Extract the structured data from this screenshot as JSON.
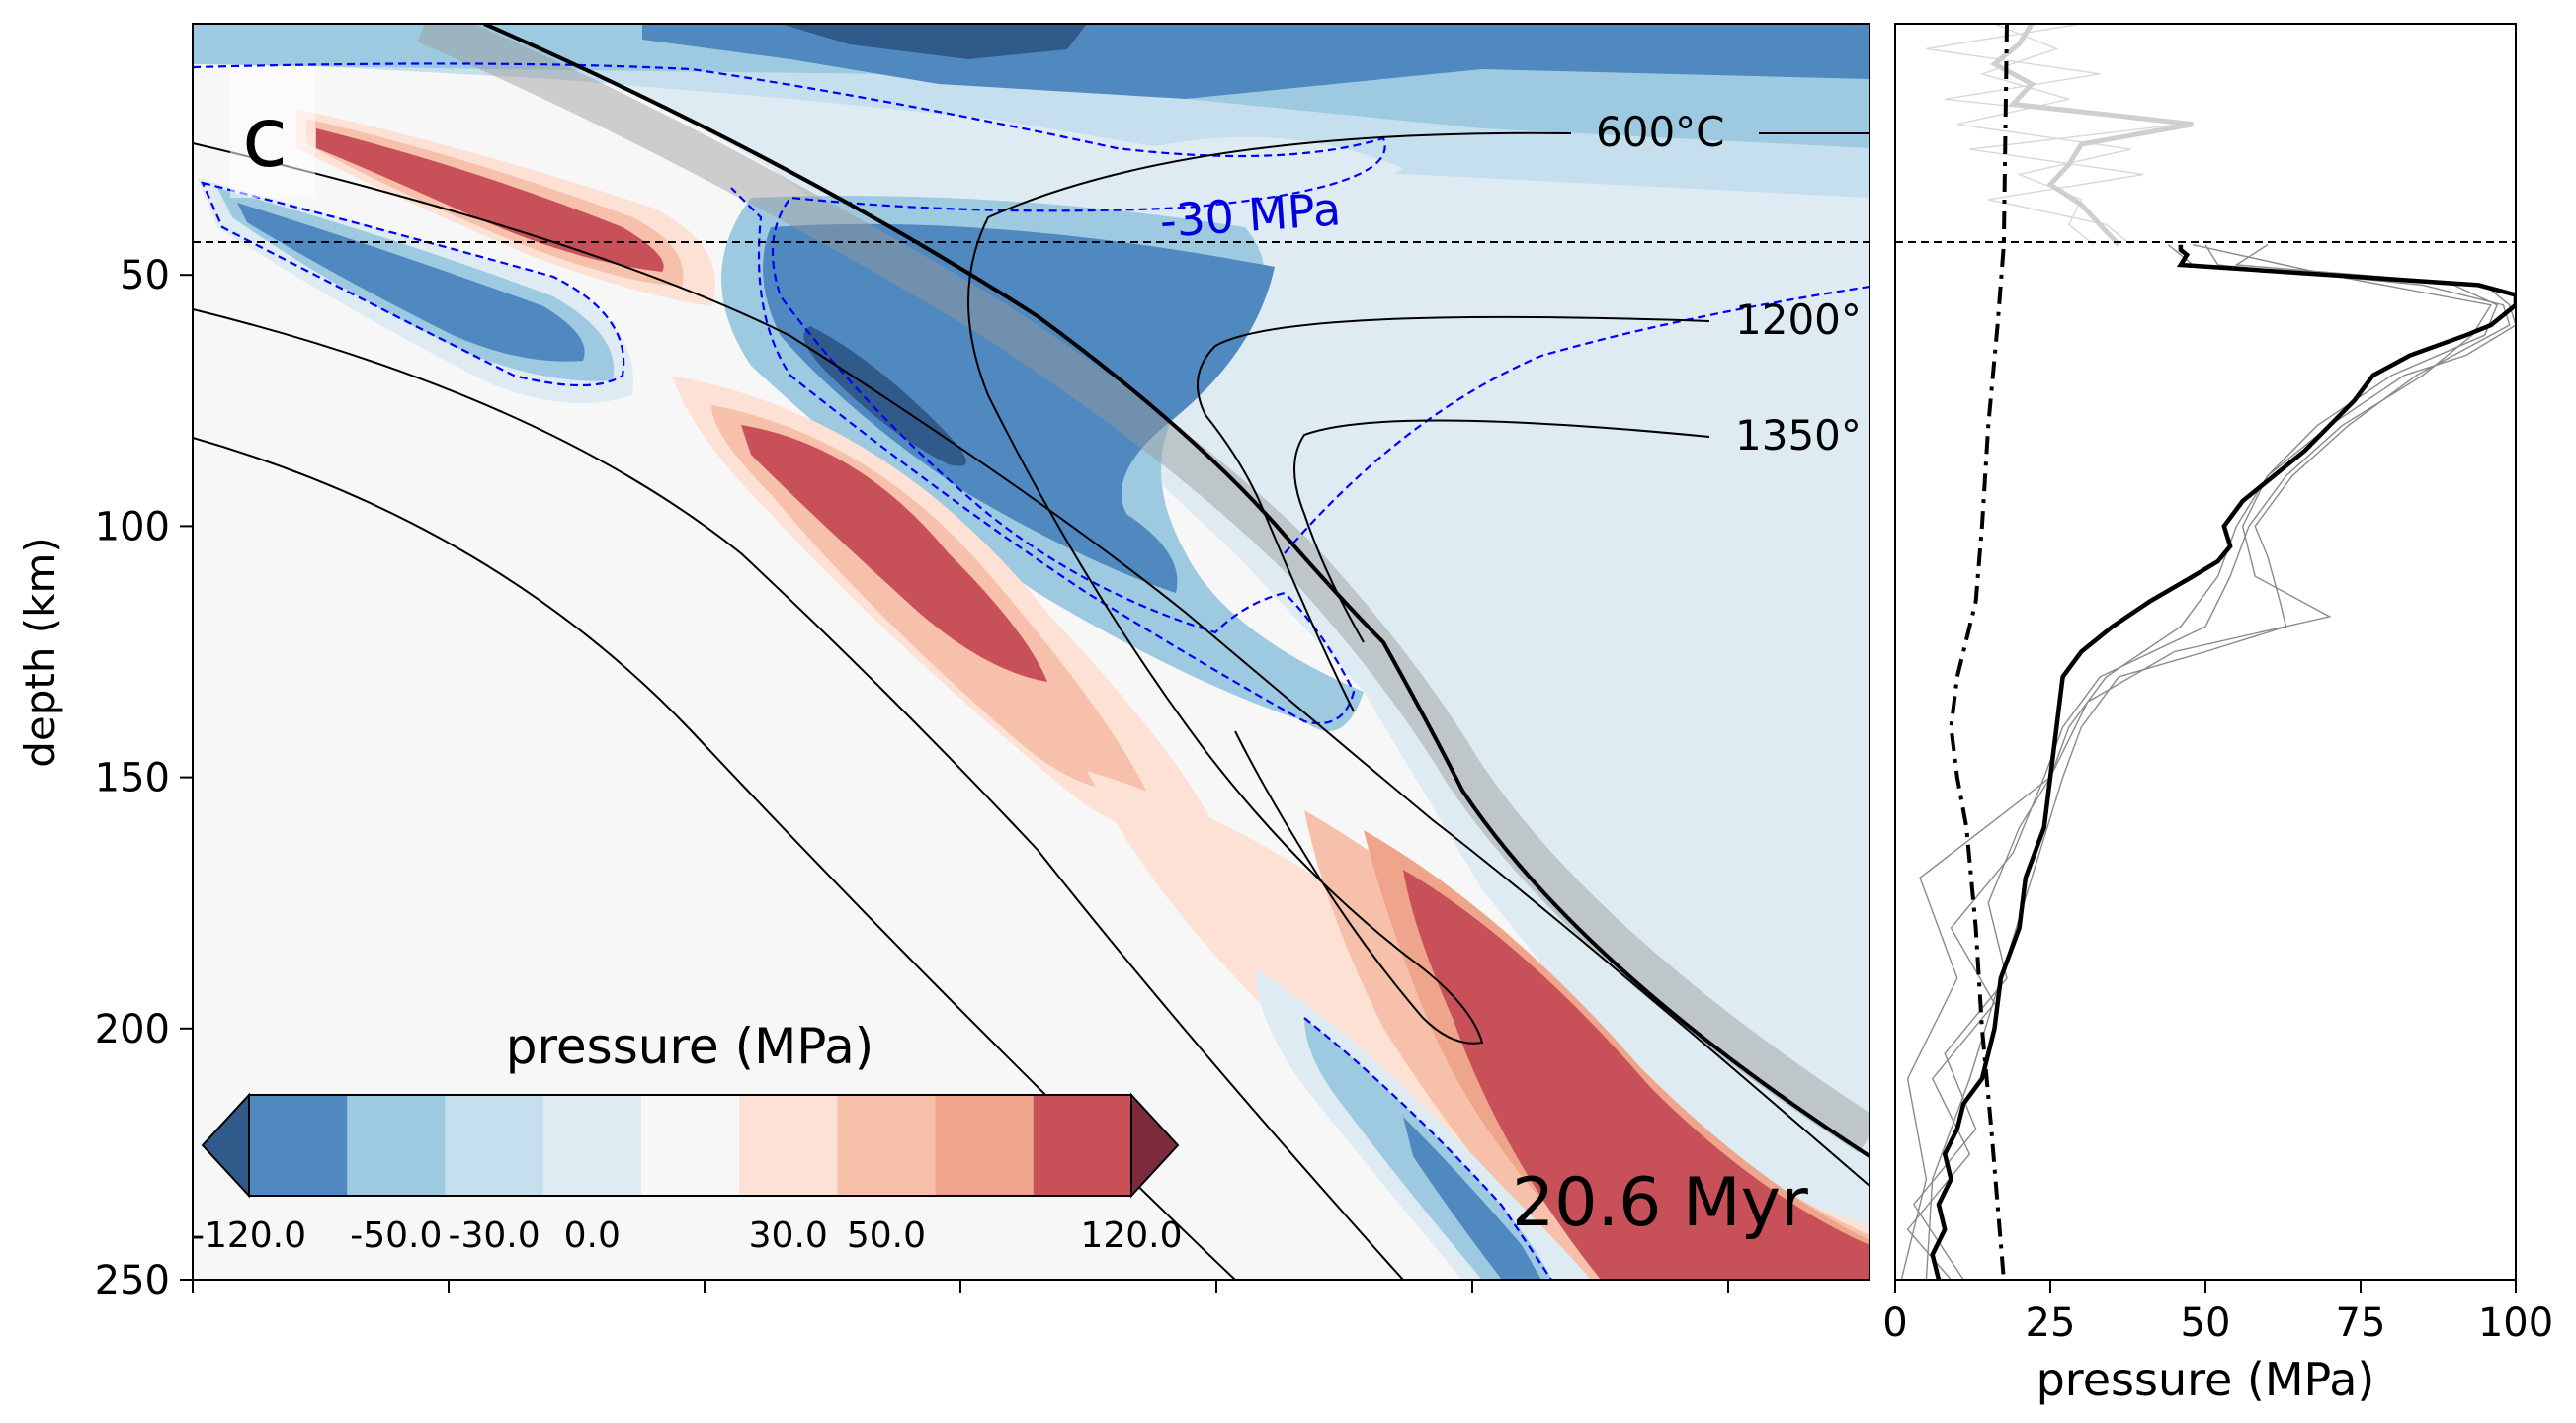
{
  "chart_data": [
    {
      "type": "heatmap",
      "panel_letter": "c",
      "time_label": "20.6 Myr",
      "ylabel": "depth (km)",
      "ylim": [
        250,
        0
      ],
      "yticks": [
        50,
        100,
        150,
        200,
        250
      ],
      "colorbar": {
        "title": "pressure (MPa)",
        "tick_labels": [
          "-120.0",
          "-50.0",
          "-30.0",
          "0.0",
          "30.0",
          "50.0",
          "120.0"
        ],
        "colors": [
          "#5089c0",
          "#9ecae1",
          "#c6dfee",
          "#deebf3",
          "#f7f7f7",
          "#fde1d4",
          "#f7c0aa",
          "#eea58b",
          "#c85159"
        ],
        "extend_low_color": "#2f5a8a",
        "extend_high_color": "#7e2a3d"
      },
      "contour_label": "-30 MPa",
      "isotherm_labels": [
        "600°C",
        "1200°",
        "1350°"
      ],
      "reference_depth_km": 44
    },
    {
      "type": "line",
      "xlabel": "pressure (MPa)",
      "xlim": [
        0,
        100
      ],
      "xticks": [
        0,
        25,
        50,
        75,
        100
      ],
      "ylim": [
        250,
        0
      ],
      "reference_depth_km": 44,
      "series": [
        {
          "style": "dash-dot",
          "depth": [
            0,
            44,
            60,
            80,
            100,
            115,
            130,
            140,
            150,
            160,
            180,
            200,
            220,
            250
          ],
          "pressure": [
            18,
            17.5,
            16.5,
            15,
            14,
            13,
            10,
            9,
            10,
            11.5,
            13,
            14,
            15.5,
            17.5
          ]
        },
        {
          "style": "bold",
          "depth": [
            44,
            45,
            46,
            48,
            52,
            54,
            56,
            60,
            62,
            66,
            70,
            75,
            80,
            85,
            90,
            95,
            100,
            104,
            107,
            110,
            115,
            120,
            125,
            130,
            140,
            150,
            160,
            170,
            180,
            190,
            200,
            210,
            215,
            220,
            225,
            230,
            235,
            240,
            245,
            250
          ],
          "pressure": [
            46,
            46,
            47,
            46,
            94,
            100,
            100,
            96,
            92,
            83,
            77,
            74,
            70,
            66,
            61,
            56,
            53,
            54,
            52,
            48,
            41,
            35,
            30,
            27,
            26,
            25,
            24,
            21,
            20,
            17,
            16,
            14,
            11,
            10,
            8,
            9,
            7,
            8,
            6,
            7
          ]
        },
        {
          "style": "thin-gray",
          "depth": [
            44,
            48,
            52,
            56,
            60,
            66,
            70,
            80,
            90,
            100,
            106,
            115,
            120,
            125,
            130,
            140,
            150,
            170,
            190,
            210,
            230,
            250
          ],
          "pressure": [
            50,
            52,
            85,
            98,
            99,
            90,
            84,
            73,
            64,
            58,
            60,
            62,
            63,
            50,
            36,
            30,
            27,
            22,
            17,
            12,
            6,
            5
          ]
        },
        {
          "style": "thin-gray",
          "depth": [
            44,
            48,
            52,
            56,
            60,
            66,
            70,
            80,
            90,
            100,
            110,
            118,
            125,
            135,
            150,
            170,
            190,
            210,
            230,
            250
          ],
          "pressure": [
            60,
            55,
            95,
            99,
            100,
            92,
            82,
            70,
            60,
            56,
            58,
            70,
            45,
            31,
            25,
            4,
            10,
            2,
            5,
            1
          ]
        },
        {
          "style": "thin-gray",
          "depth": [
            44,
            48,
            52,
            56,
            62,
            70,
            80,
            90,
            100,
            110,
            120,
            130,
            140,
            150,
            160,
            175,
            190,
            205,
            220,
            235,
            250
          ],
          "pressure": [
            44,
            48,
            90,
            97,
            95,
            80,
            68,
            60,
            55,
            52,
            46,
            34,
            28,
            25,
            20,
            15,
            18,
            8,
            13,
            3,
            11
          ]
        },
        {
          "style": "thin-gray",
          "depth": [
            44,
            50,
            56,
            62,
            70,
            80,
            90,
            100,
            110,
            120,
            130,
            140,
            150,
            165,
            180,
            195,
            210,
            225,
            240,
            250
          ],
          "pressure": [
            48,
            70,
            96,
            93,
            85,
            72,
            63,
            57,
            54,
            50,
            33,
            27,
            24,
            19,
            9,
            16,
            6,
            12,
            2,
            9
          ]
        },
        {
          "style": "thin-light",
          "depth": [
            0,
            5,
            10,
            15,
            20,
            25,
            30,
            35,
            40,
            44
          ],
          "pressure": [
            30,
            5,
            33,
            8,
            46,
            12,
            40,
            15,
            34,
            38
          ]
        },
        {
          "style": "thin-light",
          "depth": [
            0,
            5,
            10,
            15,
            20,
            25,
            30,
            35,
            40,
            44
          ],
          "pressure": [
            16,
            26,
            14,
            28,
            10,
            38,
            20,
            30,
            28,
            32
          ]
        },
        {
          "style": "light-bold",
          "depth": [
            0,
            4,
            8,
            12,
            16,
            20,
            24,
            28,
            32,
            36,
            40,
            44
          ],
          "pressure": [
            22,
            20,
            16,
            22,
            19,
            48,
            30,
            28,
            25,
            30,
            33,
            36
          ]
        }
      ]
    }
  ]
}
